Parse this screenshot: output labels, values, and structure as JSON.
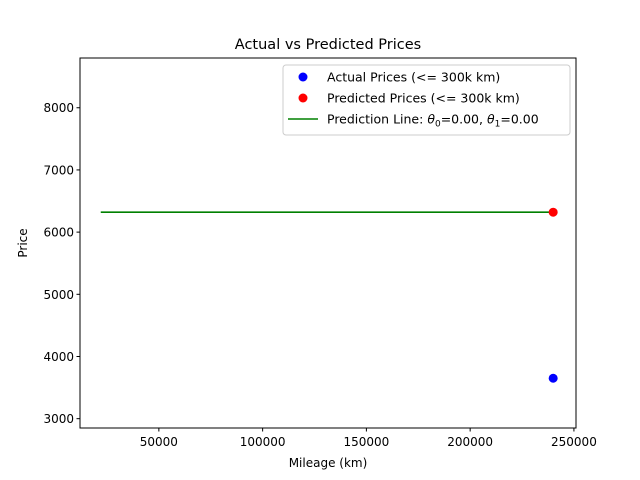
{
  "chart_data": {
    "type": "scatter",
    "title": "Actual vs Predicted Prices",
    "xlabel": "Mileage (km)",
    "ylabel": "Price",
    "xlim": [
      12000,
      251000
    ],
    "ylim": [
      2850,
      8800
    ],
    "xticks": [
      50000,
      100000,
      150000,
      200000,
      250000
    ],
    "yticks": [
      3000,
      4000,
      5000,
      6000,
      7000,
      8000
    ],
    "grid": false,
    "legend_position": "top-right",
    "series": [
      {
        "name": "Actual Prices (<= 300k km)",
        "kind": "scatter",
        "color": "#0000ff",
        "points": [
          {
            "x": 240000,
            "y": 3650
          }
        ]
      },
      {
        "name": "Predicted Prices (<= 300k km)",
        "kind": "scatter",
        "color": "#ff0000",
        "points": [
          {
            "x": 240000,
            "y": 6320
          }
        ]
      },
      {
        "name": "Prediction Line: θ0=0.00, θ1=0.00",
        "kind": "line",
        "color": "#008000",
        "points": [
          {
            "x": 22000,
            "y": 6320
          },
          {
            "x": 240000,
            "y": 6320
          }
        ]
      }
    ],
    "legend": [
      {
        "prefix": "Actual Prices (<= 300k km)",
        "marker": "dot",
        "color": "#0000ff"
      },
      {
        "prefix": "Predicted Prices (<= 300k km)",
        "marker": "dot",
        "color": "#ff0000"
      },
      {
        "prefix": "Prediction Line: ",
        "theta0_sym": "θ",
        "theta0_sub": "0",
        "theta0_val": "=0.00, ",
        "theta1_sym": "θ",
        "theta1_sub": "1",
        "theta1_val": "=0.00",
        "marker": "line",
        "color": "#008000"
      }
    ]
  }
}
